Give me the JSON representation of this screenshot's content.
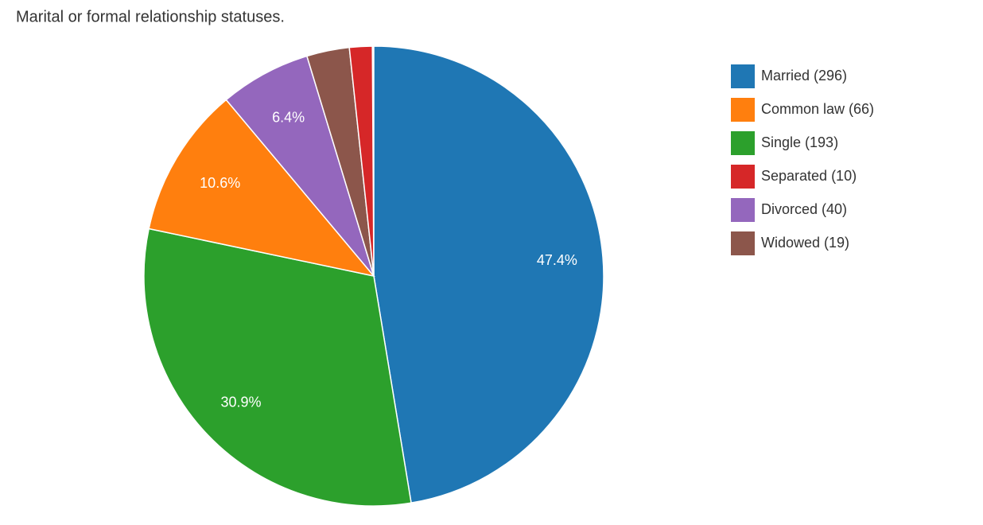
{
  "chart_data": {
    "type": "pie",
    "title": "Marital or formal relationship statuses.",
    "categories": [
      "Married (296)",
      "Common law (66)",
      "Single (193)",
      "Separated (10)",
      "Divorced (40)",
      "Widowed (19)"
    ],
    "values": [
      47.4,
      10.6,
      30.9,
      1.6,
      6.4,
      3.0
    ],
    "value_labels": [
      "47.4%",
      "10.6%",
      "30.9%",
      null,
      "6.4%",
      null
    ],
    "colors": [
      "#1f77b4",
      "#ff7f0e",
      "#2ca02c",
      "#d62728",
      "#9467bd",
      "#8c564b"
    ],
    "slice_order": "descending",
    "legend": "right"
  }
}
